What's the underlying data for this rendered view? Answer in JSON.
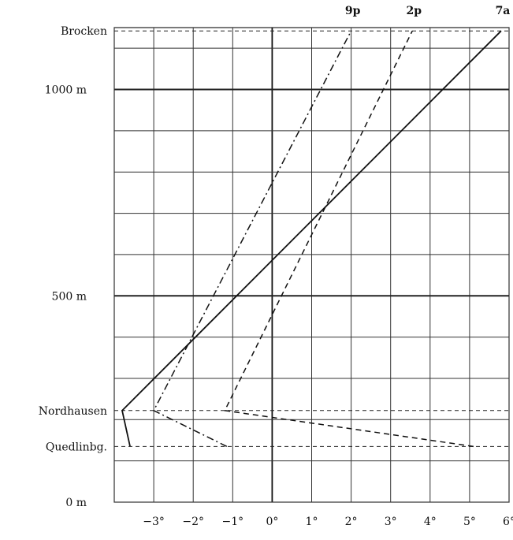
{
  "chart_data": {
    "type": "line",
    "title": "",
    "xlabel": "",
    "ylabel": "",
    "xlim": [
      -4,
      6
    ],
    "ylim": [
      0,
      1150
    ],
    "x_ticks": [
      -3,
      -2,
      -1,
      0,
      1,
      2,
      3,
      4,
      5,
      6
    ],
    "x_tick_labels": [
      "−3°",
      "−2°",
      "−1°",
      "0°",
      "1°",
      "2°",
      "3°",
      "4°",
      "5°",
      "6°"
    ],
    "y_ticks": [
      {
        "value": 0,
        "label": "0 m",
        "major": false
      },
      {
        "value": 500,
        "label": "500 m",
        "major": true
      },
      {
        "value": 1000,
        "label": "1000 m",
        "major": true
      }
    ],
    "y_gridlines": [
      0,
      100,
      200,
      300,
      400,
      500,
      600,
      700,
      800,
      900,
      1000,
      1100
    ],
    "stations": [
      {
        "name": "Brocken",
        "altitude": 1142
      },
      {
        "name": "Nordhausen",
        "altitude": 222
      },
      {
        "name": "Quedlinbg.",
        "altitude": 135
      }
    ],
    "series": [
      {
        "name": "7a",
        "style": "solid",
        "points": [
          [
            -3.6,
            135
          ],
          [
            -3.8,
            222
          ],
          [
            5.8,
            1142
          ]
        ]
      },
      {
        "name": "2p",
        "style": "dashed",
        "points": [
          [
            5.1,
            135
          ],
          [
            -1.2,
            222
          ],
          [
            3.55,
            1142
          ]
        ]
      },
      {
        "name": "9p",
        "style": "dashdot",
        "points": [
          [
            -1.15,
            135
          ],
          [
            -3.0,
            222
          ],
          [
            2.0,
            1142
          ]
        ]
      }
    ],
    "grid": true,
    "legend": "top, labels above plot"
  }
}
